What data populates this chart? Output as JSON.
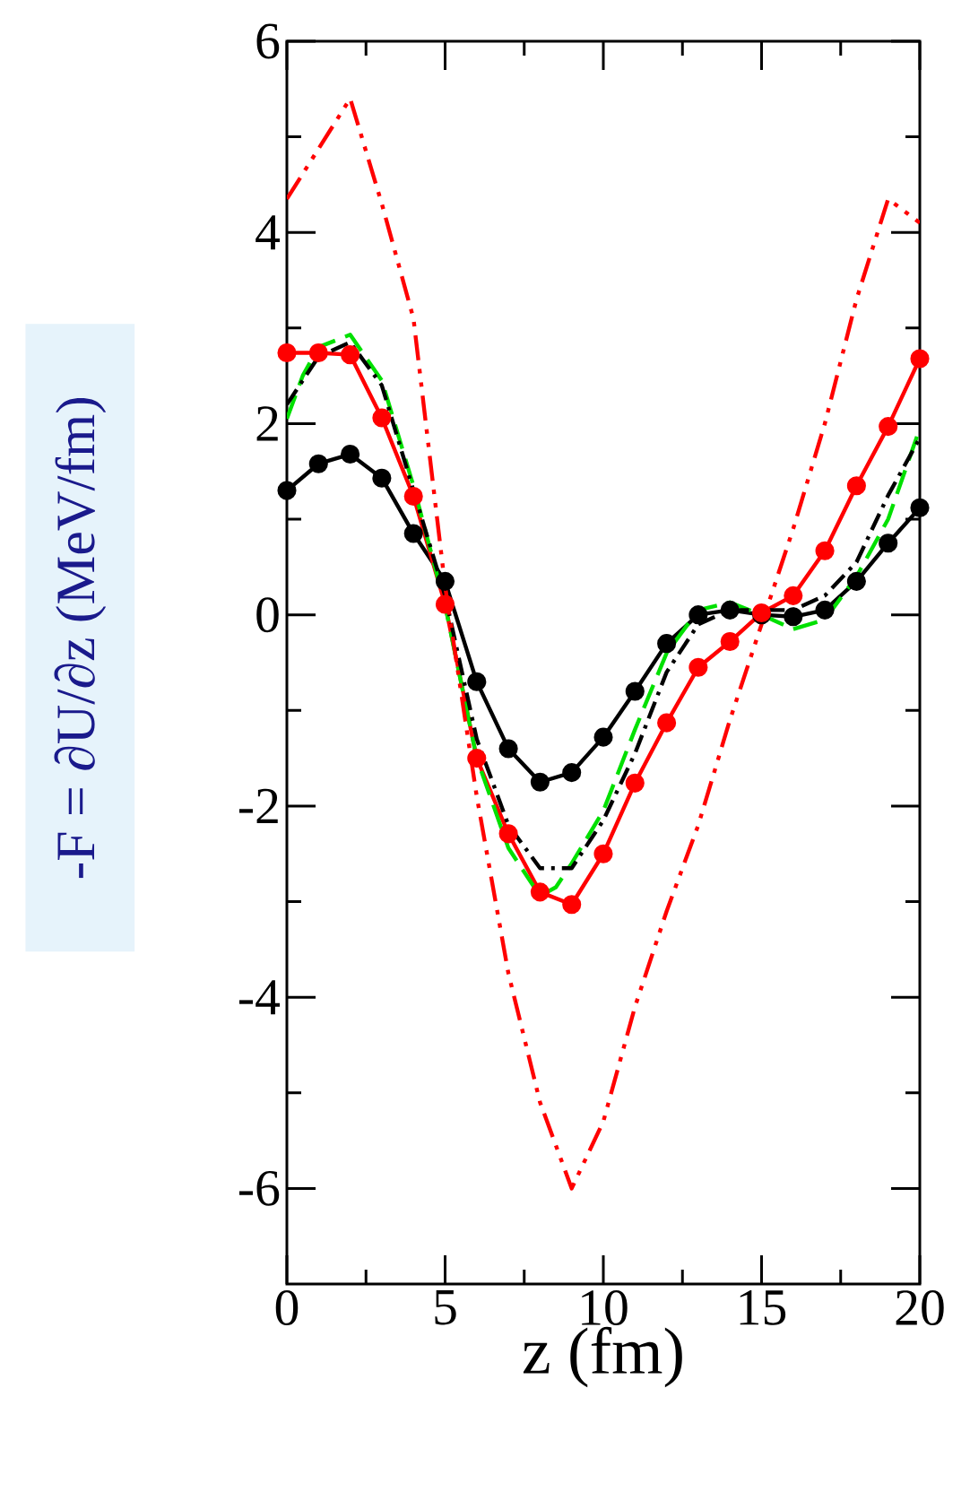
{
  "chart_data": {
    "type": "line",
    "xlabel": "z (fm)",
    "ylabel": "-F = ∂U/∂z (MeV/fm)",
    "xlim": [
      0,
      20
    ],
    "ylim": [
      -7,
      6
    ],
    "xticks": [
      0,
      5,
      10,
      15,
      20
    ],
    "yticks": [
      -6,
      -4,
      -2,
      0,
      2,
      4,
      6
    ],
    "series": [
      {
        "color": "#000000",
        "marker": "circle",
        "line_style": "solid",
        "x": [
          0,
          1,
          2,
          3,
          4,
          5,
          6,
          7,
          8,
          9,
          10,
          11,
          12,
          13,
          14,
          15,
          16,
          17,
          18,
          19,
          20
        ],
        "values": [
          1.3,
          1.58,
          1.68,
          1.43,
          0.85,
          0.35,
          -0.7,
          -1.4,
          -1.75,
          -1.65,
          -1.28,
          -0.8,
          -0.3,
          0.0,
          0.05,
          0.0,
          -0.02,
          0.05,
          0.35,
          0.75,
          1.12
        ]
      },
      {
        "color": "#ff0000",
        "marker": "circle",
        "line_style": "solid",
        "x": [
          0,
          1,
          2,
          3,
          4,
          5,
          6,
          7,
          8,
          9,
          10,
          11,
          12,
          13,
          14,
          15,
          16,
          17,
          18,
          19,
          20
        ],
        "values": [
          2.74,
          2.74,
          2.72,
          2.06,
          1.24,
          0.11,
          -1.5,
          -2.29,
          -2.9,
          -3.03,
          -2.5,
          -1.76,
          -1.13,
          -0.55,
          -0.28,
          0.02,
          0.2,
          0.67,
          1.35,
          1.97,
          2.68
        ]
      },
      {
        "color": "#00e000",
        "marker": "none",
        "line_style": "dashed",
        "x": [
          0,
          0.5,
          1,
          2,
          3,
          4,
          5,
          6,
          7,
          8,
          8.5,
          9,
          10,
          11,
          12,
          13,
          14,
          15,
          16,
          17,
          18,
          19,
          20
        ],
        "values": [
          2.05,
          2.5,
          2.8,
          2.93,
          2.45,
          1.35,
          0.1,
          -1.5,
          -2.44,
          -2.94,
          -2.85,
          -2.6,
          -2.05,
          -1.2,
          -0.4,
          0.05,
          0.13,
          0.0,
          -0.15,
          -0.05,
          0.4,
          1.0,
          1.95
        ]
      },
      {
        "color": "#000000",
        "marker": "none",
        "line_style": "dashdot",
        "x": [
          0,
          1,
          2,
          3,
          4,
          5,
          6,
          7,
          8,
          9,
          10,
          11,
          12,
          13,
          14,
          15,
          16,
          17,
          18,
          19,
          20
        ],
        "values": [
          2.2,
          2.7,
          2.85,
          2.4,
          1.3,
          0.2,
          -1.3,
          -2.2,
          -2.65,
          -2.65,
          -2.15,
          -1.45,
          -0.6,
          -0.1,
          0.05,
          0.05,
          0.05,
          0.2,
          0.55,
          1.25,
          1.85
        ]
      },
      {
        "color": "#ff0000",
        "marker": "none",
        "line_style": "dashdotdot",
        "x": [
          0,
          2,
          3,
          4,
          5,
          6,
          7,
          8,
          9,
          10,
          11,
          12,
          13,
          14,
          15,
          16,
          17,
          18,
          19,
          20
        ],
        "values": [
          4.35,
          5.4,
          4.3,
          3.1,
          0.3,
          -1.9,
          -3.75,
          -5.1,
          -6.0,
          -5.3,
          -4.1,
          -3.1,
          -2.2,
          -1.1,
          -0.1,
          0.9,
          2.0,
          3.3,
          4.35,
          4.1
        ]
      }
    ]
  }
}
